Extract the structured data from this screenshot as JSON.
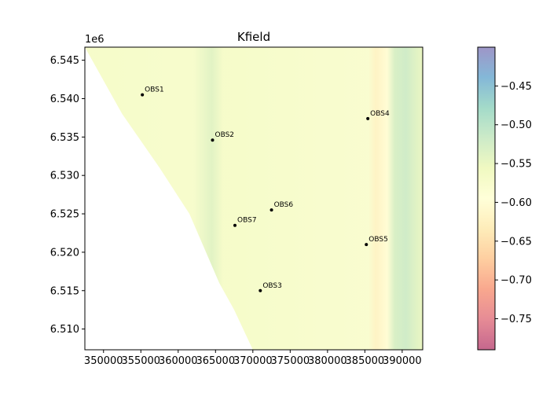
{
  "chart_data": {
    "type": "heatmap",
    "title": "Kfield",
    "xlabel": "",
    "ylabel": "",
    "y_offset_label": "1e6",
    "xlim": [
      347500,
      392750
    ],
    "ylim": [
      6507300,
      6546700
    ],
    "x_ticks": [
      350000,
      355000,
      360000,
      365000,
      370000,
      375000,
      380000,
      385000,
      390000
    ],
    "y_ticks": [
      6510000,
      6515000,
      6520000,
      6525000,
      6530000,
      6535000,
      6540000,
      6545000
    ],
    "x_tick_labels": [
      "350000",
      "355000",
      "360000",
      "365000",
      "370000",
      "375000",
      "380000",
      "385000",
      "390000"
    ],
    "y_tick_labels": [
      "6.510",
      "6.515",
      "6.520",
      "6.525",
      "6.530",
      "6.535",
      "6.540",
      "6.545"
    ],
    "domain_boundary_west": [
      [
        347500,
        6546700
      ],
      [
        352500,
        6538000
      ],
      [
        357500,
        6531000
      ],
      [
        361500,
        6525000
      ],
      [
        363500,
        6520500
      ],
      [
        365500,
        6516000
      ],
      [
        367500,
        6512500
      ],
      [
        370000,
        6507300
      ]
    ],
    "field_profile_east": [
      {
        "x": 347500,
        "value": -0.57
      },
      {
        "x": 362000,
        "value": -0.575
      },
      {
        "x": 364500,
        "value": -0.54
      },
      {
        "x": 366000,
        "value": -0.57
      },
      {
        "x": 385500,
        "value": -0.58
      },
      {
        "x": 386500,
        "value": -0.62
      },
      {
        "x": 388000,
        "value": -0.6
      },
      {
        "x": 389000,
        "value": -0.53
      },
      {
        "x": 390500,
        "value": -0.52
      },
      {
        "x": 392750,
        "value": -0.55
      }
    ],
    "observations": [
      {
        "name": "OBS1",
        "x": 355200,
        "y": 6540500
      },
      {
        "name": "OBS2",
        "x": 364600,
        "y": 6534600
      },
      {
        "name": "OBS3",
        "x": 371000,
        "y": 6515000
      },
      {
        "name": "OBS4",
        "x": 385400,
        "y": 6537400
      },
      {
        "name": "OBS5",
        "x": 385200,
        "y": 6521000
      },
      {
        "name": "OBS6",
        "x": 372500,
        "y": 6525500
      },
      {
        "name": "OBS7",
        "x": 367600,
        "y": 6523500
      }
    ],
    "colorbar": {
      "colormap": "Spectral",
      "vmin": -0.79,
      "vmax": -0.4,
      "ticks": [
        -0.45,
        -0.5,
        -0.55,
        -0.6,
        -0.65,
        -0.7,
        -0.75
      ],
      "tick_labels": [
        "−0.45",
        "−0.50",
        "−0.55",
        "−0.60",
        "−0.65",
        "−0.70",
        "−0.75"
      ],
      "alpha": 0.6
    },
    "grid": false,
    "legend": "none"
  }
}
